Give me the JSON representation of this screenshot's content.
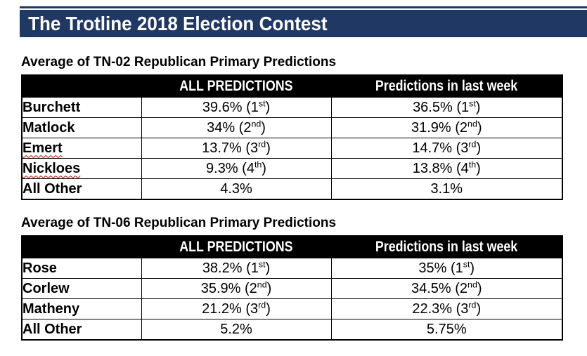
{
  "banner": {
    "title": "The Trotline 2018 Election Contest"
  },
  "colors": {
    "banner_navy": "#1f3864",
    "header_bg": "#000000",
    "header_text": "#ffffff",
    "squiggle_red": "#c00000",
    "border_black": "#000000"
  },
  "tables": [
    {
      "title": "Average of TN-02 Republican Primary Predictions",
      "headers": {
        "name": "",
        "all": "ALL PREDICTIONS",
        "week": "Predictions in last week"
      },
      "rows": [
        {
          "name": "Burchett",
          "misspelled": false,
          "all": {
            "pre": "39.6% (1",
            "sup": "st",
            "post": ")"
          },
          "week": {
            "pre": "36.5% (1",
            "sup": "st",
            "post": ")"
          }
        },
        {
          "name": "Matlock",
          "misspelled": false,
          "all": {
            "pre": "34% (2",
            "sup": "nd",
            "post": ")"
          },
          "week": {
            "pre": "31.9% (2",
            "sup": "nd",
            "post": ")"
          }
        },
        {
          "name": "Emert",
          "misspelled": true,
          "all": {
            "pre": "13.7% (3",
            "sup": "rd",
            "post": ")"
          },
          "week": {
            "pre": "14.7% (3",
            "sup": "rd",
            "post": ")"
          }
        },
        {
          "name": "Nickloes",
          "misspelled": true,
          "all": {
            "pre": "9.3% (4",
            "sup": "th",
            "post": ")"
          },
          "week": {
            "pre": "13.8% (4",
            "sup": "th",
            "post": ")"
          }
        },
        {
          "name": "All Other",
          "misspelled": false,
          "all": {
            "pre": "4.3%",
            "sup": "",
            "post": ""
          },
          "week": {
            "pre": "3.1%",
            "sup": "",
            "post": ""
          }
        }
      ]
    },
    {
      "title": "Average of TN-06 Republican Primary Predictions",
      "headers": {
        "name": "",
        "all": "ALL PREDICTIONS",
        "week": "Predictions in last week"
      },
      "rows": [
        {
          "name": "Rose",
          "misspelled": false,
          "all": {
            "pre": "38.2% (1",
            "sup": "st",
            "post": ")"
          },
          "week": {
            "pre": "35% (1",
            "sup": "st",
            "post": ")"
          }
        },
        {
          "name": "Corlew",
          "misspelled": false,
          "all": {
            "pre": "35.9% (2",
            "sup": "nd",
            "post": ")"
          },
          "week": {
            "pre": "34.5% (2",
            "sup": "nd",
            "post": ")"
          }
        },
        {
          "name": "Matheny",
          "misspelled": false,
          "all": {
            "pre": "21.2% (3",
            "sup": "rd",
            "post": ")"
          },
          "week": {
            "pre": "22.3% (3",
            "sup": "rd",
            "post": ")"
          }
        },
        {
          "name": "All Other",
          "misspelled": false,
          "all": {
            "pre": "5.2%",
            "sup": "",
            "post": ""
          },
          "week": {
            "pre": "5.75%",
            "sup": "",
            "post": ""
          }
        }
      ]
    }
  ]
}
